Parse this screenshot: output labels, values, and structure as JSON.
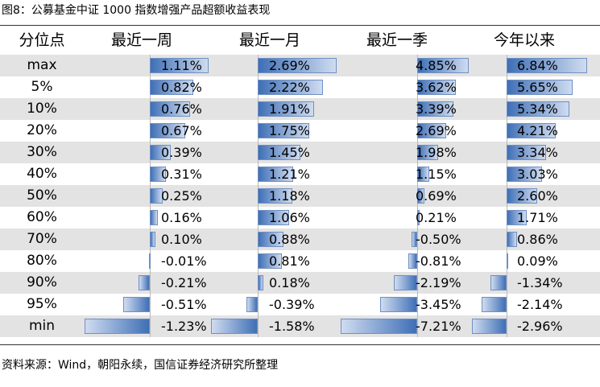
{
  "title": "图8：公募基金中证 1000 指数增强产品超额收益表现",
  "header": {
    "row_label": "分位点",
    "columns": [
      "最近一周",
      "最近一月",
      "最近一季",
      "今年以来"
    ]
  },
  "row_labels": [
    "max",
    "5%",
    "10%",
    "20%",
    "30%",
    "40%",
    "50%",
    "60%",
    "70%",
    "80%",
    "90%",
    "95%",
    "min"
  ],
  "table": {
    "columns": [
      {
        "name": "最近一周",
        "values": [
          1.11,
          0.82,
          0.76,
          0.67,
          0.39,
          0.31,
          0.25,
          0.16,
          0.1,
          -0.01,
          -0.21,
          -0.51,
          -1.23
        ],
        "labels": [
          "1.11%",
          "0.82%",
          "0.76%",
          "0.67%",
          "0.39%",
          "0.31%",
          "0.25%",
          "0.16%",
          "0.10%",
          "-0.01%",
          "-0.21%",
          "-0.51%",
          "-1.23%"
        ]
      },
      {
        "name": "最近一月",
        "values": [
          2.69,
          2.22,
          1.91,
          1.75,
          1.45,
          1.21,
          1.18,
          1.06,
          0.88,
          0.81,
          0.18,
          -0.39,
          -1.58
        ],
        "labels": [
          "2.69%",
          "2.22%",
          "1.91%",
          "1.75%",
          "1.45%",
          "1.21%",
          "1.18%",
          "1.06%",
          "0.88%",
          "0.81%",
          "0.18%",
          "-0.39%",
          "-1.58%"
        ]
      },
      {
        "name": "最近一季",
        "values": [
          4.85,
          3.62,
          3.39,
          2.69,
          1.98,
          1.15,
          0.69,
          0.21,
          -0.5,
          -0.81,
          -2.19,
          -3.45,
          -7.21
        ],
        "labels": [
          "4.85%",
          "3.62%",
          "3.39%",
          "2.69%",
          "1.98%",
          "1.15%",
          "0.69%",
          "0.21%",
          "-0.50%",
          "-0.81%",
          "-2.19%",
          "-3.45%",
          "-7.21%"
        ]
      },
      {
        "name": "今年以来",
        "values": [
          6.84,
          5.65,
          5.34,
          4.21,
          3.34,
          3.03,
          2.6,
          1.71,
          0.86,
          0.09,
          -1.34,
          -2.14,
          -2.96
        ],
        "labels": [
          "6.84%",
          "5.65%",
          "5.34%",
          "4.21%",
          "3.34%",
          "3.03%",
          "2.60%",
          "1.71%",
          "0.86%",
          "0.09%",
          "-1.34%",
          "-2.14%",
          "-2.96%"
        ]
      }
    ]
  },
  "source": "资料来源：Wind，朝阳永续，国信证券经济研究所整理",
  "colors": {
    "bar": "#3f6fb6",
    "bar_light": "#cfdcf0",
    "bar_border": "#6f8fc2",
    "row_shade": "#e3e3e3",
    "axis": "#b9b9b9"
  }
}
